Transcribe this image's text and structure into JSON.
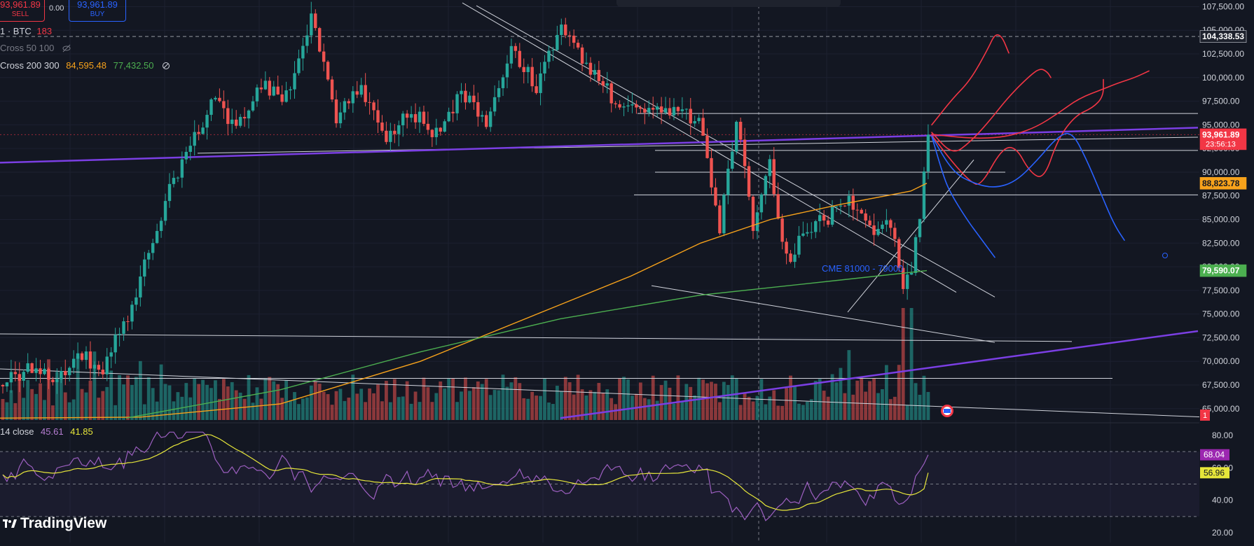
{
  "header": {
    "sell_price": "93,961.89",
    "sell_label": "SELL",
    "spread": "0.00",
    "buy_price": "93,961.89",
    "buy_label": "BUY",
    "symbol_line": "1 · BTC",
    "symbol_count": "183",
    "ma1_label": "Cross 50 100",
    "ma2_label": "Cross 200 300",
    "ma2_value1": "84,595.48",
    "ma2_value2": "77,432.50",
    "rsi_label": "14 close",
    "rsi_value1": "45.61",
    "rsi_value2": "41.85",
    "annotation": "CME 81000 - 79000",
    "brand": "TradingView"
  },
  "colors": {
    "background": "#131722",
    "up": "#26a69a",
    "down": "#ef5350",
    "ma_orange": "#f7a21b",
    "ma_green": "#4caf50",
    "purple_line": "#7b3fe4",
    "draw_red": "#f23645",
    "draw_blue": "#2962ff",
    "rsi_line": "#9c5fc0",
    "rsi_ma": "#e6e63a"
  },
  "chart_data": [
    {
      "type": "candlestick",
      "title": "",
      "y_axis_ticks": [
        65000,
        67500,
        70000,
        72500,
        75000,
        77500,
        80000,
        82500,
        85000,
        87500,
        90000,
        92500,
        95000,
        97500,
        100000,
        102500,
        105000,
        107500
      ],
      "y_axis_tick_labels": [
        "65,000.00",
        "67,500.00",
        "70,000.00",
        "72,500.00",
        "75,000.00",
        "77,500.00",
        "80,000.00",
        "82,500.00",
        "85,000.00",
        "87,500.00",
        "90,000.00",
        "92,500.00",
        "95,000.00",
        "97,500.00",
        "100,000.00",
        "102,500.00",
        "105,000.00",
        "107,500.00"
      ],
      "ylim": [
        63800,
        108200
      ],
      "price_labels": [
        {
          "value": 104338.53,
          "text": "104,338.53",
          "color": "#1e222d",
          "text_color": "#ffffff"
        },
        {
          "value": 93961.89,
          "text": "93,961.89",
          "sub": "23:56:13",
          "color": "#f23645",
          "text_color": "#ffffff"
        },
        {
          "value": 88823.78,
          "text": "88,823.78",
          "color": "#f7a21b",
          "text_color": "#131722"
        },
        {
          "value": 79590.07,
          "text": "79,590.07",
          "color": "#4caf50",
          "text_color": "#ffffff"
        }
      ],
      "candle_count": 223,
      "anchors": [
        {
          "i": 0,
          "p": 67800
        },
        {
          "i": 6,
          "p": 69000
        },
        {
          "i": 12,
          "p": 68000
        },
        {
          "i": 18,
          "p": 70500
        },
        {
          "i": 24,
          "p": 69500
        },
        {
          "i": 30,
          "p": 74500
        },
        {
          "i": 40,
          "p": 88000
        },
        {
          "i": 50,
          "p": 97500
        },
        {
          "i": 56,
          "p": 95000
        },
        {
          "i": 62,
          "p": 99000
        },
        {
          "i": 68,
          "p": 98000
        },
        {
          "i": 74,
          "p": 106000
        },
        {
          "i": 80,
          "p": 96000
        },
        {
          "i": 86,
          "p": 98500
        },
        {
          "i": 92,
          "p": 94000
        },
        {
          "i": 98,
          "p": 96500
        },
        {
          "i": 104,
          "p": 94000
        },
        {
          "i": 110,
          "p": 98500
        },
        {
          "i": 116,
          "p": 95000
        },
        {
          "i": 122,
          "p": 103500
        },
        {
          "i": 128,
          "p": 99000
        },
        {
          "i": 134,
          "p": 105000
        },
        {
          "i": 140,
          "p": 101500
        },
        {
          "i": 148,
          "p": 97000
        },
        {
          "i": 156,
          "p": 96500
        },
        {
          "i": 162,
          "p": 97000
        },
        {
          "i": 168,
          "p": 94500
        },
        {
          "i": 172,
          "p": 84000
        },
        {
          "i": 176,
          "p": 95500
        },
        {
          "i": 180,
          "p": 84000
        },
        {
          "i": 184,
          "p": 91000
        },
        {
          "i": 188,
          "p": 80500
        },
        {
          "i": 193,
          "p": 84000
        },
        {
          "i": 198,
          "p": 85000
        },
        {
          "i": 203,
          "p": 87500
        },
        {
          "i": 208,
          "p": 84000
        },
        {
          "i": 213,
          "p": 85000
        },
        {
          "i": 216,
          "p": 78500
        },
        {
          "i": 218,
          "p": 79500
        },
        {
          "i": 220,
          "p": 85500
        },
        {
          "i": 222,
          "p": 93961.89
        }
      ],
      "volume": {
        "max_visible": 1,
        "note_label": "1"
      },
      "horizontal_lines": [
        104338.53,
        96200,
        92300,
        90000,
        87600,
        68200
      ],
      "trend_lines": [
        {
          "from": [
            282,
            92000
          ],
          "to": [
            1710,
            93700
          ]
        },
        {
          "from": [
            0,
            72900
          ],
          "to": [
            1530,
            72100
          ]
        },
        {
          "from": [
            0,
            69200
          ],
          "to": [
            1790,
            63900
          ]
        },
        {
          "from": [
            930,
            78000
          ],
          "to": [
            1420,
            72000
          ]
        },
        {
          "from": [
            660,
            107900
          ],
          "to": [
            1365,
            77300
          ]
        },
        {
          "from": [
            680,
            107600
          ],
          "to": [
            1420,
            76800
          ]
        },
        {
          "from": [
            1210,
            75200
          ],
          "to": [
            1390,
            91300
          ]
        }
      ],
      "purple_lines": [
        {
          "from": [
            0,
            91000
          ],
          "to": [
            1710,
            94700
          ]
        },
        {
          "from": [
            800,
            64000
          ],
          "to": [
            1710,
            73200
          ]
        }
      ],
      "red_drawings": [
        [
          [
            1330,
            95000
          ],
          [
            1360,
            97800
          ],
          [
            1385,
            99700
          ],
          [
            1410,
            103000
          ],
          [
            1420,
            104600
          ],
          [
            1430,
            104400
          ],
          [
            1440,
            102600
          ]
        ],
        [
          [
            1330,
            94200
          ],
          [
            1360,
            91800
          ],
          [
            1385,
            93200
          ],
          [
            1410,
            95200
          ],
          [
            1440,
            98000
          ],
          [
            1470,
            100200
          ],
          [
            1485,
            101000
          ],
          [
            1495,
            100600
          ],
          [
            1500,
            100000
          ]
        ],
        [
          [
            1330,
            93900
          ],
          [
            1360,
            91000
          ],
          [
            1385,
            89000
          ],
          [
            1400,
            88500
          ],
          [
            1430,
            92500
          ],
          [
            1450,
            92700
          ],
          [
            1470,
            90000
          ],
          [
            1490,
            89200
          ],
          [
            1510,
            93500
          ],
          [
            1535,
            96000
          ],
          [
            1560,
            96800
          ],
          [
            1575,
            98000
          ],
          [
            1575,
            99800
          ]
        ],
        [
          [
            1330,
            94000
          ],
          [
            1380,
            93600
          ],
          [
            1420,
            93600
          ],
          [
            1450,
            94000
          ],
          [
            1480,
            94800
          ],
          [
            1510,
            96200
          ],
          [
            1540,
            97800
          ],
          [
            1575,
            98800
          ],
          [
            1595,
            99400
          ],
          [
            1620,
            100000
          ],
          [
            1640,
            100700
          ]
        ]
      ],
      "blue_drawings": [
        [
          [
            1330,
            93800
          ],
          [
            1345,
            90000
          ],
          [
            1355,
            88000
          ],
          [
            1380,
            85000
          ],
          [
            1400,
            83000
          ],
          [
            1420,
            81000
          ]
        ],
        [
          [
            1330,
            93800
          ],
          [
            1360,
            90000
          ],
          [
            1390,
            88800
          ],
          [
            1420,
            88300
          ],
          [
            1450,
            89000
          ],
          [
            1480,
            91200
          ],
          [
            1510,
            93800
          ],
          [
            1530,
            94300
          ],
          [
            1550,
            91500
          ],
          [
            1570,
            88000
          ],
          [
            1590,
            84500
          ],
          [
            1605,
            82800
          ]
        ]
      ],
      "ma_orange": [
        [
          0,
          64000
        ],
        [
          200,
          64100
        ],
        [
          400,
          65500
        ],
        [
          600,
          70000
        ],
        [
          800,
          76000
        ],
        [
          900,
          79000
        ],
        [
          1000,
          82500
        ],
        [
          1100,
          85000
        ],
        [
          1200,
          86600
        ],
        [
          1300,
          88000
        ],
        [
          1323,
          88823.78
        ]
      ],
      "ma_green": [
        [
          180,
          64000
        ],
        [
          400,
          67000
        ],
        [
          600,
          71000
        ],
        [
          800,
          74500
        ],
        [
          1000,
          77000
        ],
        [
          1100,
          77800
        ],
        [
          1200,
          78600
        ],
        [
          1323,
          79590.07
        ]
      ]
    },
    {
      "type": "line",
      "title": "",
      "y_axis_ticks": [
        20,
        40,
        60,
        80
      ],
      "y_axis_tick_labels": [
        "20.00",
        "40.00",
        "60.00",
        "80.00"
      ],
      "ylim": [
        14,
        86
      ],
      "reference_lines": [
        70,
        30
      ],
      "series": [
        {
          "name": "",
          "last_label": "68.04",
          "color": "#9c5fc0"
        },
        {
          "name": "",
          "last_label": "56.96",
          "color": "#e6e63a"
        }
      ]
    }
  ]
}
